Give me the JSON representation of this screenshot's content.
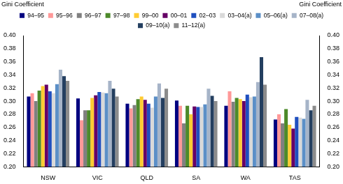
{
  "chart_data": {
    "type": "bar",
    "y_label": "Gini Coefficient",
    "y2_label": "Gini Coefficient",
    "categories": [
      "NSW",
      "VIC",
      "QLD",
      "SA",
      "WA",
      "TAS"
    ],
    "series": [
      {
        "name": "94–95",
        "color": "#000080",
        "values": [
          0.307,
          0.304,
          0.296,
          0.301,
          0.293,
          0.272
        ]
      },
      {
        "name": "95–96",
        "color": "#ff9999",
        "values": [
          0.312,
          0.271,
          0.289,
          0.293,
          0.315,
          0.28
        ]
      },
      {
        "name": "96–97",
        "color": "#808080",
        "values": [
          0.3,
          0.286,
          0.294,
          0.266,
          0.299,
          0.266
        ]
      },
      {
        "name": "97–98",
        "color": "#4d8a2a",
        "values": [
          0.316,
          0.286,
          0.303,
          0.293,
          0.305,
          0.288
        ]
      },
      {
        "name": "99–00",
        "color": "#ffcc33",
        "values": [
          0.323,
          0.305,
          0.307,
          0.28,
          0.303,
          0.264
        ]
      },
      {
        "name": "00–01",
        "color": "#660066",
        "values": [
          0.325,
          0.309,
          0.302,
          0.292,
          0.3,
          0.258
        ]
      },
      {
        "name": "02–03",
        "color": "#1f4fbf",
        "values": [
          0.315,
          0.314,
          0.296,
          0.291,
          0.31,
          0.276
        ]
      },
      {
        "name": "03–04(a)",
        "color": "#d9d9d9",
        "values": [
          0.312,
          0.313,
          0.29,
          0.291,
          0.306,
          0.275
        ]
      },
      {
        "name": "05–06(a)",
        "color": "#5b8fc7",
        "values": [
          0.326,
          0.312,
          0.307,
          0.295,
          0.307,
          0.273
        ]
      },
      {
        "name": "07–08(a)",
        "color": "#a6b4c8",
        "values": [
          0.348,
          0.331,
          0.327,
          0.319,
          0.329,
          0.302
        ]
      },
      {
        "name": "09–10(a)",
        "color": "#243f60",
        "values": [
          0.338,
          0.319,
          0.305,
          0.308,
          0.367,
          0.286
        ]
      },
      {
        "name": "11–12(a)",
        "color": "#8c8c8c",
        "values": [
          0.331,
          0.307,
          0.319,
          0.3,
          0.325,
          0.293
        ]
      }
    ],
    "ylim": [
      0.2,
      0.4
    ],
    "yticks": [
      {
        "value": 0.2,
        "label": "0.20"
      },
      {
        "value": 0.22,
        "label": "0.22"
      },
      {
        "value": 0.24,
        "label": "0.24"
      },
      {
        "value": 0.26,
        "label": "0.26"
      },
      {
        "value": 0.28,
        "label": "0.28"
      },
      {
        "value": 0.3,
        "label": "0.30"
      },
      {
        "value": 0.32,
        "label": "0.32"
      },
      {
        "value": 0.34,
        "label": "0.34"
      },
      {
        "value": 0.36,
        "label": "0.36"
      },
      {
        "value": 0.38,
        "label": "0.38"
      },
      {
        "value": 0.4,
        "label": "0.40"
      }
    ],
    "y2lim": [
      0.2,
      0.4
    ],
    "y2ticks": [
      {
        "value": 0.2,
        "label": "0.20"
      },
      {
        "value": 0.22,
        "label": "0.22"
      },
      {
        "value": 0.24,
        "label": "0.24"
      },
      {
        "value": 0.26,
        "label": "0.26"
      },
      {
        "value": 0.28,
        "label": "0.28"
      },
      {
        "value": 0.3,
        "label": "0.30"
      },
      {
        "value": 0.32,
        "label": "0.32"
      },
      {
        "value": 0.34,
        "label": "0.34"
      },
      {
        "value": 0.36,
        "label": "0.36"
      },
      {
        "value": 0.38,
        "label": "0.38"
      },
      {
        "value": 0.4,
        "label": "0.40"
      }
    ],
    "grid": false,
    "legend": "top"
  }
}
